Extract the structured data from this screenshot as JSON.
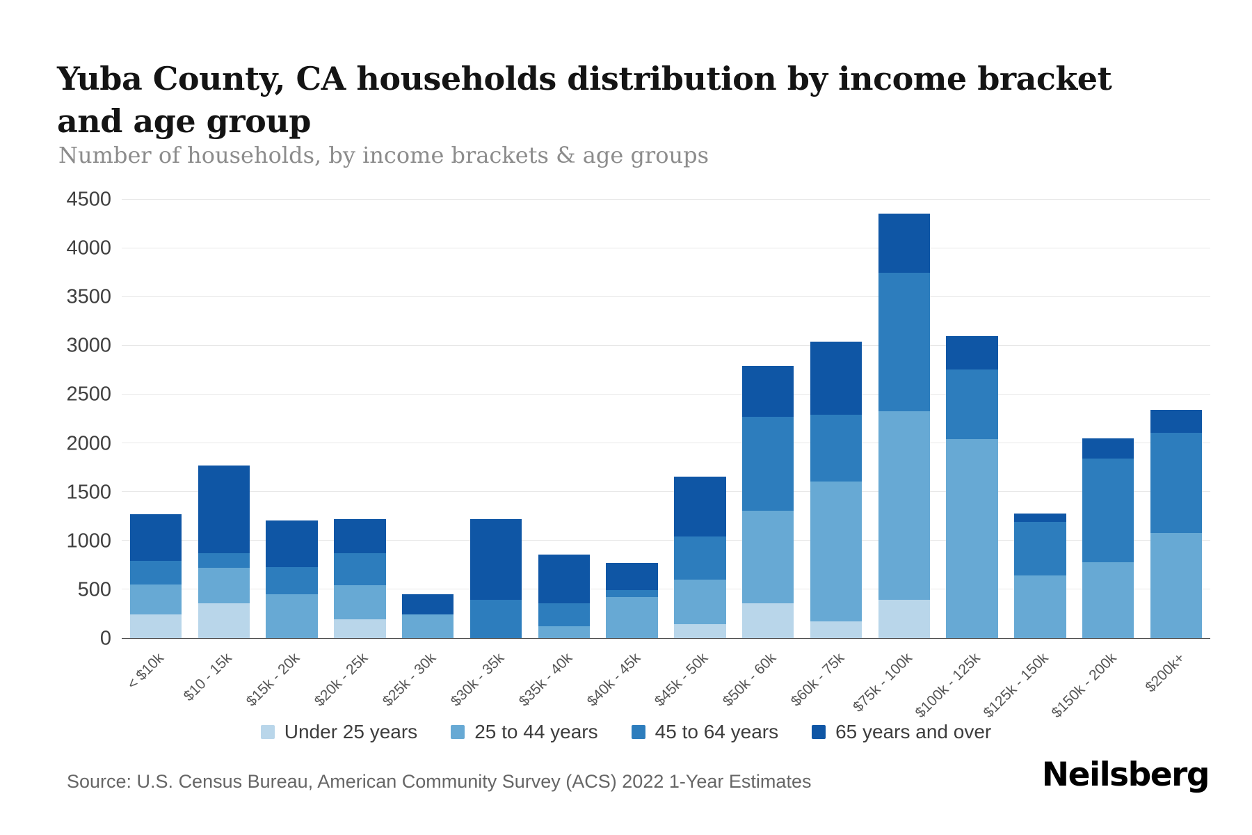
{
  "page": {
    "title": "Yuba County, CA households distribution by income bracket and age group",
    "subtitle": "Number of households, by income brackets & age groups",
    "source": "Source: U.S. Census Bureau, American Community Survey (ACS) 2022 1-Year Estimates",
    "brand": "Neilsberg"
  },
  "chart_data": {
    "type": "bar",
    "stacked": true,
    "title": "Yuba County, CA households distribution by income bracket and age group",
    "subtitle": "Number of households, by income brackets & age groups",
    "xlabel": "",
    "ylabel": "Number of households",
    "ylim": [
      0,
      4500
    ],
    "yticks": [
      0,
      500,
      1000,
      1500,
      2000,
      2500,
      3000,
      3500,
      4000,
      4500
    ],
    "grid": "horizontal",
    "legend_position": "bottom",
    "categories": [
      "< $10k",
      "$10 - 15k",
      "$15k - 20k",
      "$20k - 25k",
      "$25k - 30k",
      "$30k - 35k",
      "$35k - 40k",
      "$40k - 45k",
      "$45k - 50k",
      "$50k - 60k",
      "$60k - 75k",
      "$75k - 100k",
      "$100k - 125k",
      "$125k - 150k",
      "$150k - 200k",
      "$200k+"
    ],
    "series": [
      {
        "name": "Under 25 years",
        "color": "#b9d6ea",
        "values": [
          240,
          360,
          0,
          190,
          0,
          0,
          0,
          0,
          140,
          360,
          170,
          390,
          0,
          0,
          0,
          0
        ]
      },
      {
        "name": "25 to 44 years",
        "color": "#67a9d4",
        "values": [
          310,
          360,
          450,
          350,
          240,
          0,
          120,
          420,
          460,
          950,
          1440,
          1940,
          2040,
          640,
          780,
          1080
        ]
      },
      {
        "name": "45 to 64 years",
        "color": "#2d7dbd",
        "values": [
          240,
          150,
          280,
          330,
          0,
          390,
          240,
          70,
          440,
          960,
          680,
          1420,
          720,
          550,
          1060,
          1030
        ]
      },
      {
        "name": "65 years and over",
        "color": "#0f56a5",
        "values": [
          480,
          900,
          480,
          350,
          210,
          830,
          500,
          280,
          620,
          520,
          750,
          610,
          340,
          90,
          210,
          230
        ]
      }
    ]
  }
}
